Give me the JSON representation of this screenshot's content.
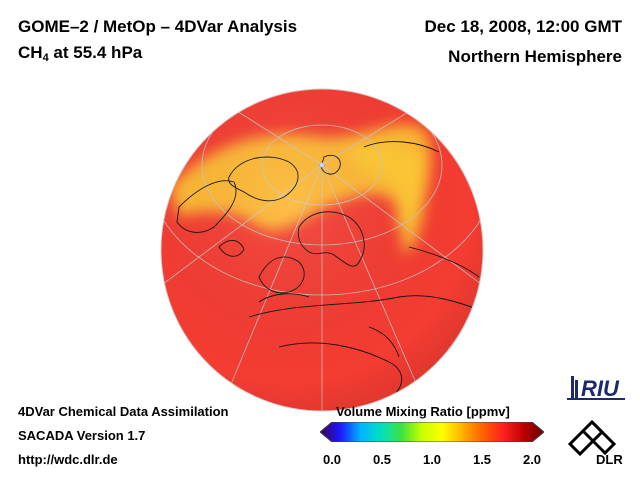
{
  "header": {
    "title_line1": "GOME–2 / MetOp – 4DVar Analysis",
    "species_prefix": "CH",
    "species_subscript": "4",
    "species_suffix": " at 55.4 hPa",
    "date": "Dec 18, 2008, 12:00 GMT",
    "region": "Northern Hemisphere"
  },
  "footer": {
    "line1": "4DVar Chemical Data Assimilation",
    "line2": "SACADA Version 1.7",
    "line3": "http://wdc.dlr.de"
  },
  "colorbar": {
    "title": "Volume Mixing Ratio [ppmv]",
    "ticks": [
      "0.0",
      "0.5",
      "1.0",
      "1.5",
      "2.0"
    ],
    "colors": [
      "#3a0050",
      "#1a1aff",
      "#00b4ff",
      "#00e0c0",
      "#40e040",
      "#c8ff00",
      "#ffff00",
      "#ffb000",
      "#ff6000",
      "#ff2020",
      "#c00000",
      "#600000"
    ]
  },
  "map": {
    "projection": "Orthographic, centered on the North Pole",
    "field_colors": {
      "background": "#f43c32",
      "enhanced": "#ffcc33"
    }
  },
  "logos": {
    "riu": "RIU",
    "dlr": "DLR"
  }
}
